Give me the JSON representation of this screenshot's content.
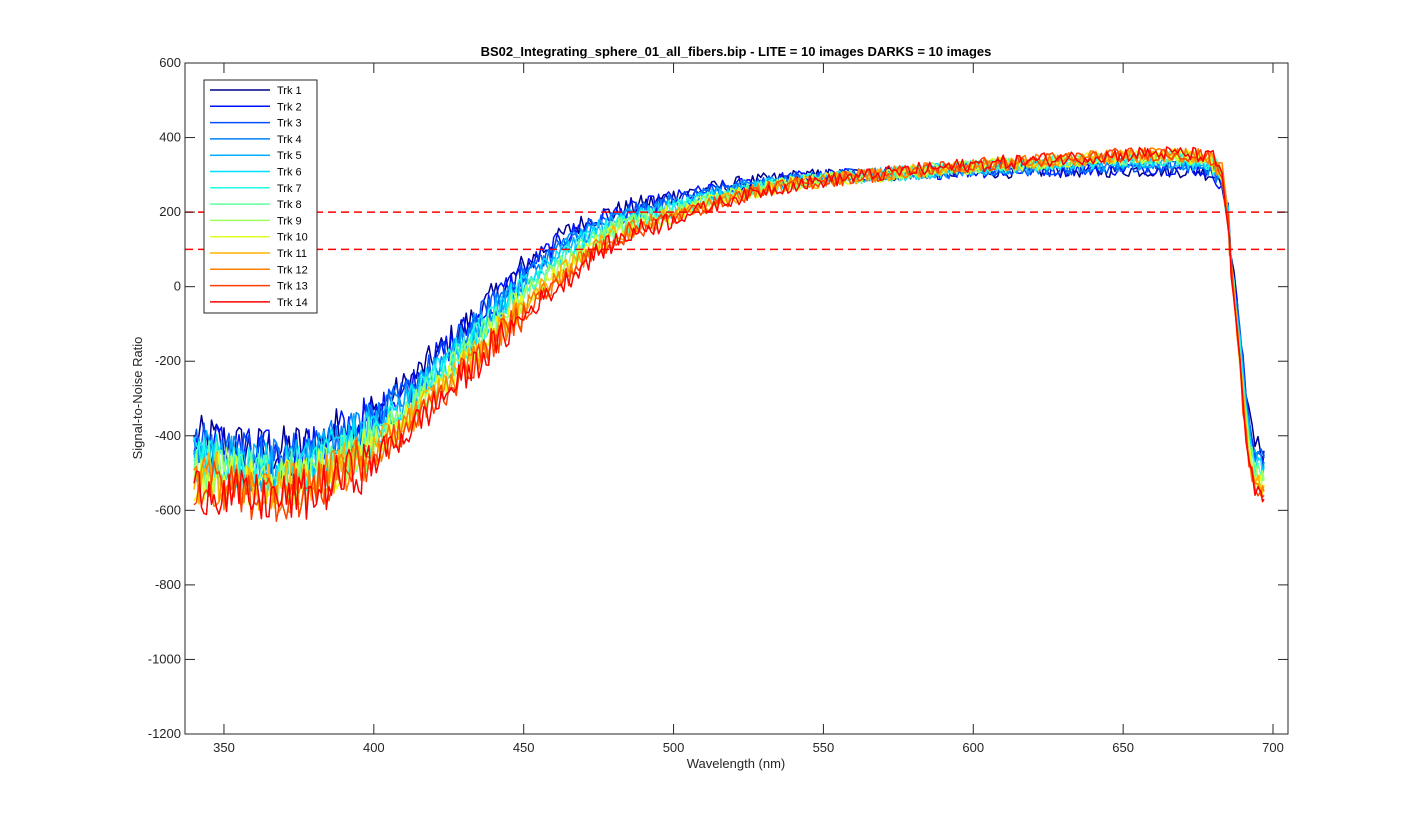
{
  "chart_data": {
    "type": "line",
    "title": "BS02_Integrating_sphere_01_all_fibers.bip - LITE =  10 images  DARKS = 10 images",
    "xlabel": "Wavelength (nm)",
    "ylabel": "Signal-to-Noise Ratio",
    "xlim": [
      337,
      705
    ],
    "ylim": [
      -1200,
      600
    ],
    "xticks": [
      350,
      400,
      450,
      500,
      550,
      600,
      650,
      700
    ],
    "yticks": [
      -1200,
      -1000,
      -800,
      -600,
      -400,
      -200,
      0,
      200,
      400,
      600
    ],
    "grid": false,
    "legend_position": "top-left",
    "reference_lines": [
      {
        "y": 200,
        "color": "#ff0000",
        "style": "dashed"
      },
      {
        "y": 100,
        "color": "#ff0000",
        "style": "dashed"
      }
    ],
    "x": [
      340,
      345,
      350,
      355,
      360,
      365,
      370,
      375,
      380,
      385,
      390,
      395,
      400,
      405,
      410,
      415,
      420,
      425,
      430,
      435,
      440,
      445,
      450,
      455,
      460,
      465,
      470,
      475,
      480,
      485,
      490,
      495,
      500,
      510,
      520,
      530,
      540,
      550,
      560,
      570,
      580,
      590,
      600,
      610,
      620,
      630,
      640,
      650,
      660,
      670,
      675,
      680,
      683,
      685,
      686,
      688,
      690,
      692,
      694,
      696,
      697
    ],
    "series": [
      {
        "name": "Trk 1",
        "color": "#00008f",
        "values": [
          -420,
          -410,
          -420,
          -430,
          -440,
          -440,
          -440,
          -430,
          -430,
          -400,
          -380,
          -360,
          -340,
          -300,
          -270,
          -230,
          -190,
          -150,
          -110,
          -70,
          -30,
          10,
          50,
          90,
          120,
          150,
          170,
          190,
          200,
          210,
          220,
          230,
          245,
          260,
          275,
          285,
          295,
          298,
          300,
          302,
          305,
          307,
          310,
          310,
          311,
          312,
          312,
          313,
          313,
          312,
          310,
          300,
          290,
          200,
          80,
          -50,
          -200,
          -350,
          -420,
          -440,
          -440
        ]
      },
      {
        "name": "Trk 2",
        "color": "#0010ff",
        "values": [
          -430,
          -420,
          -430,
          -440,
          -450,
          -450,
          -450,
          -440,
          -440,
          -410,
          -390,
          -370,
          -350,
          -310,
          -280,
          -240,
          -200,
          -160,
          -120,
          -80,
          -40,
          0,
          40,
          80,
          110,
          140,
          160,
          180,
          192,
          202,
          212,
          222,
          238,
          255,
          270,
          282,
          292,
          296,
          299,
          302,
          305,
          308,
          311,
          312,
          314,
          315,
          316,
          318,
          320,
          318,
          315,
          305,
          285,
          195,
          75,
          -55,
          -210,
          -360,
          -430,
          -450,
          -450
        ]
      },
      {
        "name": "Trk 3",
        "color": "#0050ff",
        "values": [
          -440,
          -430,
          -440,
          -450,
          -460,
          -460,
          -460,
          -450,
          -450,
          -420,
          -400,
          -380,
          -360,
          -320,
          -290,
          -250,
          -210,
          -170,
          -130,
          -90,
          -50,
          -10,
          30,
          70,
          100,
          130,
          150,
          170,
          185,
          196,
          206,
          216,
          232,
          250,
          266,
          278,
          289,
          294,
          298,
          301,
          305,
          309,
          313,
          315,
          317,
          319,
          321,
          323,
          325,
          324,
          320,
          310,
          285,
          190,
          70,
          -60,
          -220,
          -370,
          -440,
          -460,
          -460
        ]
      },
      {
        "name": "Trk 4",
        "color": "#0080ff",
        "values": [
          -450,
          -440,
          -450,
          -460,
          -470,
          -470,
          -470,
          -460,
          -460,
          -430,
          -410,
          -390,
          -370,
          -330,
          -300,
          -260,
          -220,
          -180,
          -140,
          -100,
          -60,
          -20,
          20,
          60,
          90,
          120,
          142,
          162,
          178,
          190,
          200,
          210,
          226,
          246,
          262,
          275,
          286,
          292,
          296,
          300,
          305,
          310,
          315,
          318,
          320,
          322,
          325,
          328,
          330,
          329,
          325,
          315,
          288,
          188,
          68,
          -65,
          -230,
          -380,
          -450,
          -470,
          -470
        ]
      },
      {
        "name": "Trk 5",
        "color": "#00b0ff",
        "values": [
          -460,
          -450,
          -460,
          -470,
          -480,
          -480,
          -480,
          -470,
          -470,
          -440,
          -420,
          -400,
          -380,
          -340,
          -310,
          -270,
          -230,
          -190,
          -150,
          -110,
          -70,
          -30,
          10,
          50,
          80,
          110,
          134,
          155,
          172,
          185,
          195,
          205,
          220,
          242,
          258,
          272,
          284,
          290,
          295,
          300,
          305,
          311,
          317,
          320,
          323,
          326,
          329,
          332,
          335,
          334,
          330,
          320,
          290,
          185,
          65,
          -70,
          -240,
          -390,
          -460,
          -480,
          -480
        ]
      },
      {
        "name": "Trk 6",
        "color": "#00e0ff",
        "values": [
          -470,
          -460,
          -470,
          -480,
          -490,
          -490,
          -490,
          -480,
          -480,
          -450,
          -430,
          -410,
          -390,
          -350,
          -320,
          -280,
          -240,
          -200,
          -160,
          -120,
          -80,
          -40,
          0,
          40,
          70,
          100,
          126,
          148,
          166,
          180,
          190,
          200,
          215,
          238,
          255,
          270,
          282,
          289,
          294,
          300,
          306,
          312,
          318,
          322,
          326,
          329,
          333,
          336,
          340,
          339,
          335,
          325,
          292,
          182,
          62,
          -75,
          -250,
          -400,
          -470,
          -490,
          -490
        ]
      },
      {
        "name": "Trk 7",
        "color": "#20ffe0",
        "values": [
          -480,
          -470,
          -480,
          -490,
          -500,
          -500,
          -500,
          -490,
          -490,
          -460,
          -440,
          -420,
          -400,
          -360,
          -330,
          -290,
          -250,
          -210,
          -170,
          -130,
          -90,
          -50,
          -10,
          30,
          60,
          90,
          118,
          141,
          160,
          175,
          186,
          196,
          210,
          234,
          252,
          268,
          280,
          288,
          294,
          300,
          306,
          313,
          320,
          324,
          328,
          332,
          336,
          340,
          344,
          343,
          339,
          329,
          294,
          180,
          60,
          -80,
          -260,
          -410,
          -480,
          -500,
          -500
        ]
      },
      {
        "name": "Trk 8",
        "color": "#60ff9f",
        "values": [
          -490,
          -480,
          -490,
          -500,
          -510,
          -510,
          -510,
          -500,
          -500,
          -470,
          -450,
          -430,
          -410,
          -370,
          -340,
          -300,
          -260,
          -220,
          -180,
          -140,
          -100,
          -60,
          -20,
          20,
          50,
          80,
          110,
          134,
          154,
          170,
          182,
          192,
          205,
          230,
          249,
          266,
          279,
          287,
          294,
          300,
          307,
          314,
          321,
          326,
          330,
          334,
          338,
          342,
          346,
          345,
          341,
          331,
          296,
          178,
          58,
          -85,
          -270,
          -420,
          -490,
          -510,
          -510
        ]
      },
      {
        "name": "Trk 9",
        "color": "#a0ff60",
        "values": [
          -500,
          -490,
          -500,
          -510,
          -520,
          -520,
          -520,
          -510,
          -510,
          -480,
          -460,
          -440,
          -420,
          -380,
          -350,
          -310,
          -270,
          -230,
          -190,
          -150,
          -110,
          -70,
          -30,
          10,
          40,
          70,
          102,
          127,
          148,
          165,
          178,
          188,
          200,
          226,
          246,
          264,
          278,
          286,
          294,
          301,
          308,
          315,
          322,
          327,
          332,
          336,
          340,
          345,
          349,
          348,
          344,
          334,
          298,
          176,
          56,
          -90,
          -280,
          -430,
          -500,
          -520,
          -520
        ]
      },
      {
        "name": "Trk 10",
        "color": "#e0ff20",
        "values": [
          -510,
          -500,
          -510,
          -520,
          -530,
          -530,
          -530,
          -520,
          -520,
          -490,
          -470,
          -450,
          -430,
          -390,
          -360,
          -320,
          -280,
          -240,
          -200,
          -160,
          -120,
          -80,
          -40,
          0,
          30,
          60,
          94,
          120,
          142,
          160,
          174,
          184,
          196,
          222,
          244,
          262,
          277,
          286,
          294,
          301,
          309,
          316,
          323,
          328,
          333,
          337,
          342,
          347,
          351,
          350,
          346,
          336,
          300,
          174,
          54,
          -95,
          -290,
          -440,
          -510,
          -530,
          -530
        ]
      },
      {
        "name": "Trk 11",
        "color": "#ffb000",
        "values": [
          -520,
          -510,
          -520,
          -530,
          -540,
          -540,
          -540,
          -530,
          -530,
          -500,
          -480,
          -460,
          -440,
          -400,
          -370,
          -330,
          -290,
          -250,
          -210,
          -170,
          -130,
          -90,
          -50,
          -10,
          20,
          50,
          86,
          113,
          136,
          155,
          170,
          180,
          192,
          219,
          242,
          261,
          276,
          285,
          294,
          302,
          310,
          317,
          324,
          330,
          335,
          339,
          344,
          349,
          353,
          352,
          348,
          338,
          302,
          172,
          52,
          -100,
          -300,
          -450,
          -520,
          -540,
          -540
        ]
      },
      {
        "name": "Trk 12",
        "color": "#ff8000",
        "values": [
          -530,
          -520,
          -530,
          -540,
          -550,
          -550,
          -550,
          -540,
          -540,
          -510,
          -490,
          -470,
          -450,
          -410,
          -380,
          -340,
          -300,
          -260,
          -220,
          -180,
          -140,
          -100,
          -60,
          -20,
          10,
          40,
          78,
          106,
          130,
          150,
          166,
          176,
          188,
          216,
          240,
          260,
          275,
          285,
          294,
          302,
          310,
          318,
          325,
          331,
          336,
          341,
          346,
          351,
          355,
          354,
          350,
          340,
          304,
          170,
          50,
          -105,
          -310,
          -460,
          -530,
          -550,
          -550
        ]
      },
      {
        "name": "Trk 13",
        "color": "#ff4000",
        "values": [
          -540,
          -530,
          -540,
          -550,
          -560,
          -560,
          -560,
          -550,
          -550,
          -520,
          -500,
          -480,
          -460,
          -420,
          -390,
          -350,
          -310,
          -270,
          -230,
          -190,
          -150,
          -110,
          -70,
          -30,
          0,
          30,
          70,
          100,
          124,
          145,
          162,
          172,
          185,
          213,
          238,
          259,
          274,
          285,
          294,
          302,
          311,
          319,
          326,
          332,
          338,
          343,
          348,
          353,
          357,
          356,
          352,
          342,
          306,
          168,
          48,
          -110,
          -320,
          -470,
          -540,
          -560,
          -560
        ]
      },
      {
        "name": "Trk 14",
        "color": "#ff0000",
        "values": [
          -550,
          -540,
          -550,
          -560,
          -570,
          -570,
          -570,
          -560,
          -560,
          -530,
          -510,
          -490,
          -470,
          -430,
          -400,
          -360,
          -320,
          -280,
          -240,
          -200,
          -160,
          -120,
          -80,
          -40,
          -10,
          20,
          62,
          94,
          118,
          140,
          158,
          168,
          182,
          210,
          236,
          258,
          273,
          285,
          294,
          303,
          312,
          320,
          327,
          333,
          339,
          344,
          349,
          354,
          358,
          357,
          353,
          343,
          308,
          166,
          46,
          -115,
          -330,
          -480,
          -550,
          -570,
          -570
        ]
      }
    ]
  }
}
